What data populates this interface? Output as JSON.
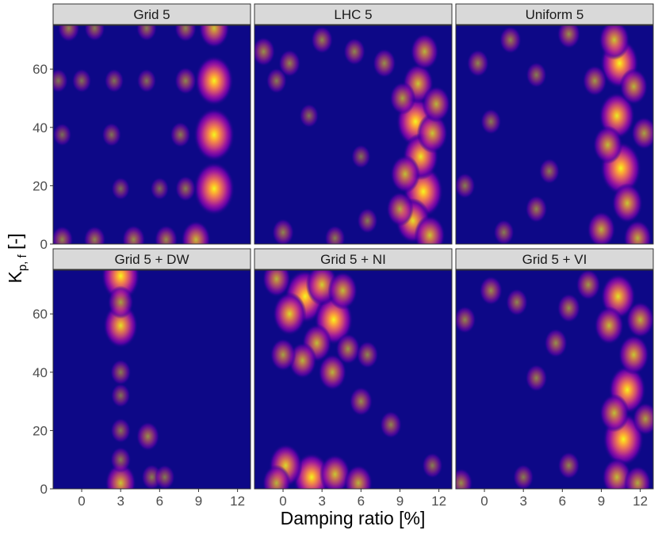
{
  "chart_data": {
    "type": "heatmap",
    "title": "",
    "xlabel": "Damping ratio [%]",
    "ylabel": {
      "main": "K",
      "subscript": "p, f",
      "suffix": " [-]"
    },
    "xlim": [
      -2.2,
      13
    ],
    "ylim": [
      0,
      75
    ],
    "xticks": [
      0,
      3,
      6,
      9,
      12
    ],
    "yticks": [
      0,
      20,
      40,
      60
    ],
    "colormap": [
      "#0d0887",
      "#5c01a6",
      "#9c179e",
      "#cc4778",
      "#ed7953",
      "#fdb42f",
      "#f0f921"
    ],
    "panels": [
      {
        "label": "Grid 5",
        "hotspots": [
          {
            "x": 10.2,
            "y": 74,
            "w": 0.6
          },
          {
            "x": 10.2,
            "y": 56,
            "w": 0.9
          },
          {
            "x": 10.2,
            "y": 37.5,
            "w": 1.0
          },
          {
            "x": 10.2,
            "y": 19,
            "w": 1.0
          },
          {
            "x": 8.8,
            "y": 1.5,
            "w": 0.55
          },
          {
            "x": 8.0,
            "y": 56,
            "w": 0.25
          },
          {
            "x": 8.0,
            "y": 19,
            "w": 0.2
          },
          {
            "x": 7.6,
            "y": 37.5,
            "w": 0.2
          },
          {
            "x": 6.5,
            "y": 1.5,
            "w": 0.3
          },
          {
            "x": 4.0,
            "y": 1.5,
            "w": 0.3
          },
          {
            "x": 1.0,
            "y": 1.5,
            "w": 0.25
          },
          {
            "x": -1.5,
            "y": 1.5,
            "w": 0.25
          },
          {
            "x": 5.0,
            "y": 56,
            "w": 0.15
          },
          {
            "x": 2.5,
            "y": 56,
            "w": 0.15
          },
          {
            "x": 0.0,
            "y": 56,
            "w": 0.15
          },
          {
            "x": -1.8,
            "y": 56,
            "w": 0.15
          },
          {
            "x": 2.3,
            "y": 37.5,
            "w": 0.15
          },
          {
            "x": -1.5,
            "y": 37.5,
            "w": 0.12
          },
          {
            "x": 3.0,
            "y": 19,
            "w": 0.12
          },
          {
            "x": 6.0,
            "y": 19,
            "w": 0.12
          },
          {
            "x": 8.0,
            "y": 74,
            "w": 0.25
          },
          {
            "x": 5.0,
            "y": 74,
            "w": 0.2
          },
          {
            "x": 1.0,
            "y": 74,
            "w": 0.2
          },
          {
            "x": -1.0,
            "y": 74,
            "w": 0.25
          }
        ]
      },
      {
        "label": "LHC 5",
        "hotspots": [
          {
            "x": 10.8,
            "y": 18,
            "w": 0.95
          },
          {
            "x": 10.2,
            "y": 42,
            "w": 0.9
          },
          {
            "x": 10.6,
            "y": 30,
            "w": 0.8
          },
          {
            "x": 10.0,
            "y": 8,
            "w": 0.75
          },
          {
            "x": 10.4,
            "y": 55,
            "w": 0.6
          },
          {
            "x": 10.9,
            "y": 66,
            "w": 0.5
          },
          {
            "x": 11.5,
            "y": 38,
            "w": 0.6
          },
          {
            "x": 9.4,
            "y": 24,
            "w": 0.55
          },
          {
            "x": 9.2,
            "y": 50,
            "w": 0.4
          },
          {
            "x": 9.0,
            "y": 12,
            "w": 0.45
          },
          {
            "x": 11.3,
            "y": 3,
            "w": 0.6
          },
          {
            "x": 11.8,
            "y": 48,
            "w": 0.5
          },
          {
            "x": 7.8,
            "y": 62,
            "w": 0.3
          },
          {
            "x": 3.0,
            "y": 70,
            "w": 0.25
          },
          {
            "x": 5.5,
            "y": 66,
            "w": 0.25
          },
          {
            "x": 0.5,
            "y": 62,
            "w": 0.25
          },
          {
            "x": -1.5,
            "y": 66,
            "w": 0.3
          },
          {
            "x": -0.5,
            "y": 56,
            "w": 0.2
          },
          {
            "x": 2.0,
            "y": 44,
            "w": 0.15
          },
          {
            "x": 6.0,
            "y": 30,
            "w": 0.15
          },
          {
            "x": 0.0,
            "y": 4,
            "w": 0.25
          },
          {
            "x": 4.0,
            "y": 2,
            "w": 0.2
          },
          {
            "x": 6.5,
            "y": 8,
            "w": 0.2
          }
        ]
      },
      {
        "label": "Uniform 5",
        "hotspots": [
          {
            "x": 10.5,
            "y": 26,
            "w": 1.0
          },
          {
            "x": 10.4,
            "y": 62,
            "w": 0.9
          },
          {
            "x": 10.2,
            "y": 44,
            "w": 0.8
          },
          {
            "x": 10.0,
            "y": 70,
            "w": 0.6
          },
          {
            "x": 11.0,
            "y": 14,
            "w": 0.6
          },
          {
            "x": 9.5,
            "y": 34,
            "w": 0.55
          },
          {
            "x": 11.5,
            "y": 54,
            "w": 0.5
          },
          {
            "x": 9.0,
            "y": 5,
            "w": 0.5
          },
          {
            "x": 11.8,
            "y": 2,
            "w": 0.5
          },
          {
            "x": 12.3,
            "y": 38,
            "w": 0.4
          },
          {
            "x": 8.5,
            "y": 56,
            "w": 0.35
          },
          {
            "x": 6.5,
            "y": 72,
            "w": 0.3
          },
          {
            "x": 2.0,
            "y": 70,
            "w": 0.25
          },
          {
            "x": -0.5,
            "y": 62,
            "w": 0.25
          },
          {
            "x": 4.0,
            "y": 58,
            "w": 0.2
          },
          {
            "x": 0.5,
            "y": 42,
            "w": 0.2
          },
          {
            "x": 5.0,
            "y": 25,
            "w": 0.2
          },
          {
            "x": 4.0,
            "y": 12,
            "w": 0.25
          },
          {
            "x": -1.5,
            "y": 20,
            "w": 0.2
          },
          {
            "x": 1.5,
            "y": 4,
            "w": 0.2
          }
        ]
      },
      {
        "label": "Grid 5 + DW",
        "hotspots": [
          {
            "x": 3.0,
            "y": 73,
            "w": 0.9
          },
          {
            "x": 3.0,
            "y": 56,
            "w": 0.75
          },
          {
            "x": 3.0,
            "y": 64,
            "w": 0.4
          },
          {
            "x": 3.0,
            "y": 2,
            "w": 0.6
          },
          {
            "x": 3.0,
            "y": 40,
            "w": 0.2
          },
          {
            "x": 3.0,
            "y": 32,
            "w": 0.15
          },
          {
            "x": 3.0,
            "y": 20,
            "w": 0.18
          },
          {
            "x": 3.0,
            "y": 10,
            "w": 0.2
          },
          {
            "x": 5.1,
            "y": 18,
            "w": 0.3
          },
          {
            "x": 5.4,
            "y": 4,
            "w": 0.2
          },
          {
            "x": 6.4,
            "y": 4,
            "w": 0.18
          }
        ]
      },
      {
        "label": "Grid 5 + NI",
        "hotspots": [
          {
            "x": 1.7,
            "y": 66,
            "w": 1.0
          },
          {
            "x": 3.9,
            "y": 58,
            "w": 0.9
          },
          {
            "x": 0.5,
            "y": 60,
            "w": 0.7
          },
          {
            "x": 3.0,
            "y": 70,
            "w": 0.65
          },
          {
            "x": 4.6,
            "y": 68,
            "w": 0.55
          },
          {
            "x": -0.5,
            "y": 72,
            "w": 0.5
          },
          {
            "x": 2.6,
            "y": 50,
            "w": 0.55
          },
          {
            "x": 1.5,
            "y": 44,
            "w": 0.5
          },
          {
            "x": 3.8,
            "y": 40,
            "w": 0.5
          },
          {
            "x": 0.0,
            "y": 46,
            "w": 0.4
          },
          {
            "x": 5.0,
            "y": 48,
            "w": 0.35
          },
          {
            "x": 2.2,
            "y": 4,
            "w": 0.85
          },
          {
            "x": 0.2,
            "y": 8,
            "w": 0.7
          },
          {
            "x": 4.0,
            "y": 5,
            "w": 0.6
          },
          {
            "x": 5.8,
            "y": 2,
            "w": 0.5
          },
          {
            "x": -0.5,
            "y": 2,
            "w": 0.5
          },
          {
            "x": 6.0,
            "y": 30,
            "w": 0.3
          },
          {
            "x": 8.3,
            "y": 22,
            "w": 0.25
          },
          {
            "x": 6.5,
            "y": 46,
            "w": 0.25
          },
          {
            "x": 11.5,
            "y": 8,
            "w": 0.2
          }
        ]
      },
      {
        "label": "Grid 5 + VI",
        "hotspots": [
          {
            "x": 10.7,
            "y": 17,
            "w": 1.0
          },
          {
            "x": 11.0,
            "y": 34,
            "w": 0.85
          },
          {
            "x": 10.3,
            "y": 66,
            "w": 0.75
          },
          {
            "x": 11.5,
            "y": 46,
            "w": 0.6
          },
          {
            "x": 9.6,
            "y": 56,
            "w": 0.55
          },
          {
            "x": 10.0,
            "y": 26,
            "w": 0.55
          },
          {
            "x": 12.0,
            "y": 58,
            "w": 0.5
          },
          {
            "x": 10.2,
            "y": 4,
            "w": 0.55
          },
          {
            "x": 11.8,
            "y": 2,
            "w": 0.45
          },
          {
            "x": 12.4,
            "y": 24,
            "w": 0.4
          },
          {
            "x": 8.0,
            "y": 70,
            "w": 0.35
          },
          {
            "x": 6.5,
            "y": 62,
            "w": 0.3
          },
          {
            "x": 5.5,
            "y": 50,
            "w": 0.3
          },
          {
            "x": 2.5,
            "y": 64,
            "w": 0.25
          },
          {
            "x": 0.5,
            "y": 68,
            "w": 0.3
          },
          {
            "x": -1.5,
            "y": 58,
            "w": 0.25
          },
          {
            "x": 4.0,
            "y": 38,
            "w": 0.25
          },
          {
            "x": 6.5,
            "y": 8,
            "w": 0.25
          },
          {
            "x": 3.0,
            "y": 4,
            "w": 0.2
          },
          {
            "x": -1.8,
            "y": 2,
            "w": 0.3
          }
        ]
      }
    ]
  }
}
